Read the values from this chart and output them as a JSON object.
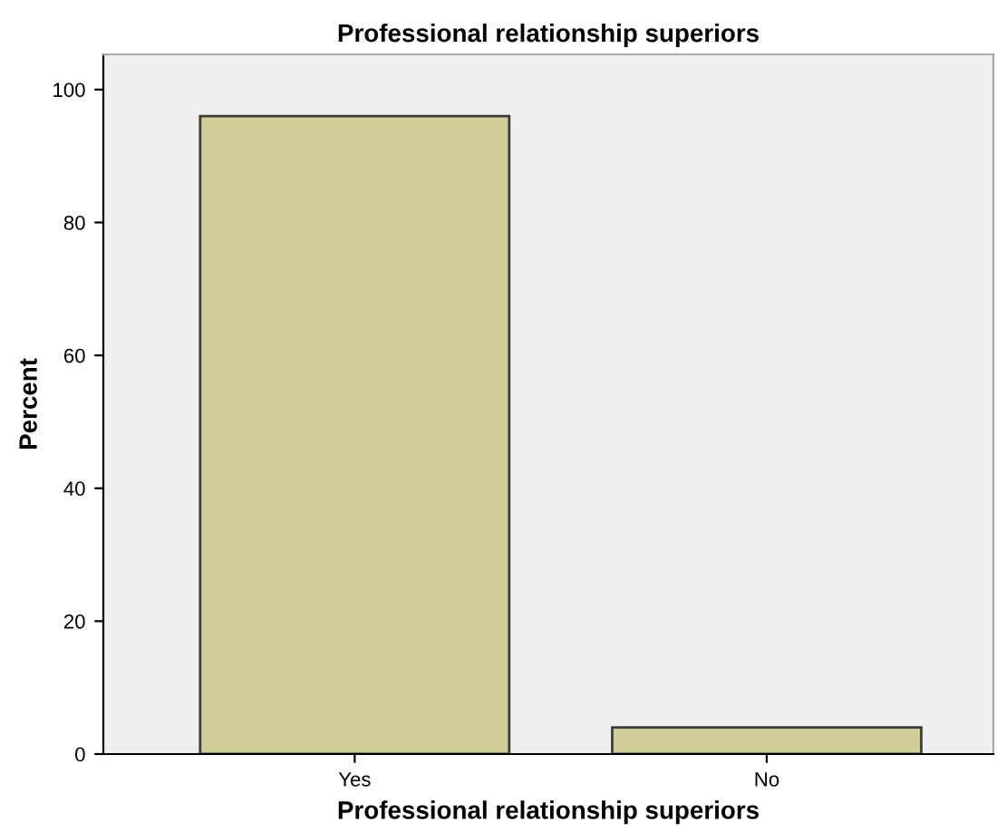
{
  "chart_data": {
    "type": "bar",
    "title": "Professional relationship superiors",
    "xlabel": "Professional relationship superiors",
    "ylabel": "Percent",
    "categories": [
      "Yes",
      "No"
    ],
    "values": [
      96,
      4
    ],
    "color": "#d2cd96",
    "ylim": [
      0,
      105.3
    ],
    "yticks": [
      0,
      20,
      40,
      60,
      80,
      100
    ],
    "grid": false
  }
}
